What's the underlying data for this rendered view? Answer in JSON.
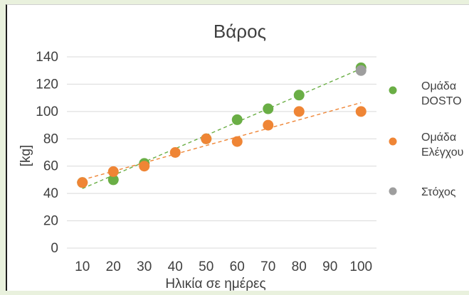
{
  "chart_data": {
    "type": "scatter",
    "title": "Βάρος",
    "xlabel": "Ηλικία σε ημέρες",
    "ylabel": "[kg]",
    "xlim": [
      5,
      105
    ],
    "ylim": [
      0,
      140
    ],
    "x_ticks": [
      "10",
      "20",
      "30",
      "40",
      "50",
      "60",
      "70",
      "80",
      "90",
      "100"
    ],
    "y_ticks": [
      "0",
      "20",
      "40",
      "60",
      "80",
      "100",
      "120",
      "140"
    ],
    "grid": "horizontal",
    "legend_position": "right",
    "series": [
      {
        "name": "Ομάδα DOSTO",
        "legend_lines": [
          "Ομάδα",
          "DOSTO"
        ],
        "color": "#6aae45",
        "trendline": true,
        "points": [
          [
            10,
            48
          ],
          [
            20,
            50
          ],
          [
            30,
            62
          ],
          [
            50,
            80
          ],
          [
            60,
            94
          ],
          [
            70,
            102
          ],
          [
            80,
            112
          ],
          [
            100,
            132
          ]
        ]
      },
      {
        "name": "Ομάδα Ελέγχου",
        "legend_lines": [
          "Ομάδα",
          "Ελέγχου"
        ],
        "color": "#ef8535",
        "trendline": true,
        "points": [
          [
            10,
            48
          ],
          [
            20,
            56
          ],
          [
            30,
            60
          ],
          [
            40,
            70
          ],
          [
            50,
            80
          ],
          [
            60,
            78
          ],
          [
            70,
            90
          ],
          [
            80,
            100
          ],
          [
            100,
            100
          ]
        ]
      },
      {
        "name": "Στόχος",
        "legend_lines": [
          "Στόχος"
        ],
        "color": "#9e9e9e",
        "trendline": false,
        "points": [
          [
            100,
            130
          ]
        ]
      }
    ]
  }
}
